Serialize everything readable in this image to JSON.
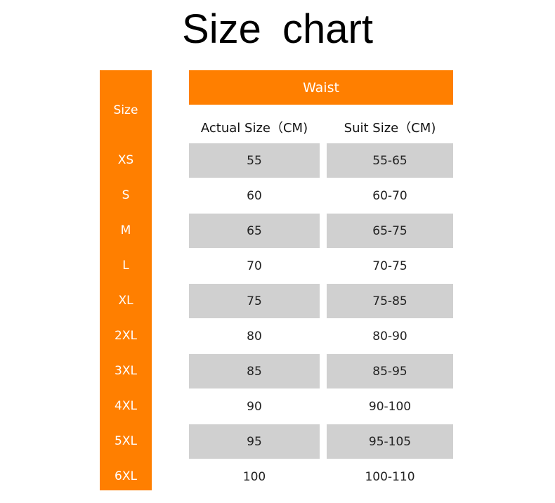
{
  "title": "Size  chart",
  "chart_data": {
    "type": "table",
    "title": "Size  chart",
    "group_header": "Waist",
    "columns": [
      "Size",
      "Actual Size（CM)",
      "Suit Size（CM)"
    ],
    "rows": [
      [
        "XS",
        "55",
        "55-65"
      ],
      [
        "S",
        "60",
        "60-70"
      ],
      [
        "M",
        "65",
        "65-75"
      ],
      [
        "L",
        "70",
        "70-75"
      ],
      [
        "XL",
        "75",
        "75-85"
      ],
      [
        "2XL",
        "80",
        "80-90"
      ],
      [
        "3XL",
        "85",
        "85-95"
      ],
      [
        "4XL",
        "90",
        "90-100"
      ],
      [
        "5XL",
        "95",
        "95-105"
      ],
      [
        "6XL",
        "100",
        "100-110"
      ]
    ]
  },
  "colors": {
    "header_orange": "#ff7f00",
    "row_gray": "#d0d0d0"
  }
}
